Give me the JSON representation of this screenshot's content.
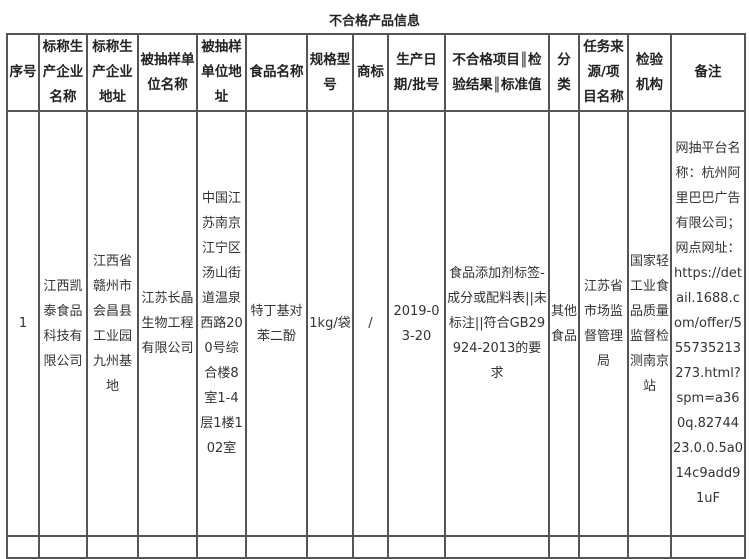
{
  "title": "不合格产品信息",
  "headers": [
    "序号",
    "标称生产企业名称",
    "标称生产企业地址",
    "被抽样单位名称",
    "被抽样单位地址",
    "食品名称",
    "规格型号",
    "商标",
    "生产日期/批号",
    "不合格项目║检验结果║标准值",
    "分类",
    "任务来源/项目名称",
    "检验机构",
    "备注"
  ],
  "rows": [
    [
      "1",
      "江西凯泰食品科技有限公司",
      "江西省赣州市会昌县工业园九州基地",
      "江苏长晶生物工程有限公司",
      "中国江苏南京江宁区汤山街道温泉西路200号综合楼8室1-4层1楼102室",
      "特丁基对苯二酚",
      "1kg/袋",
      "/",
      "2019-03-20",
      "食品添加剂标签-成分或配料表||未标注||符合GB29924-2013的要求",
      "其他食品",
      "江苏省市场监督管理局",
      "国家轻工业食品质量监督检测南京站",
      "网抽平台名称：杭州阿里巴巴广告有限公司；网点网址：https://detail.1688.com/offer/555735213273.html?spm=a360q.8274423.0.0.5a014c9add91uF"
    ]
  ]
}
